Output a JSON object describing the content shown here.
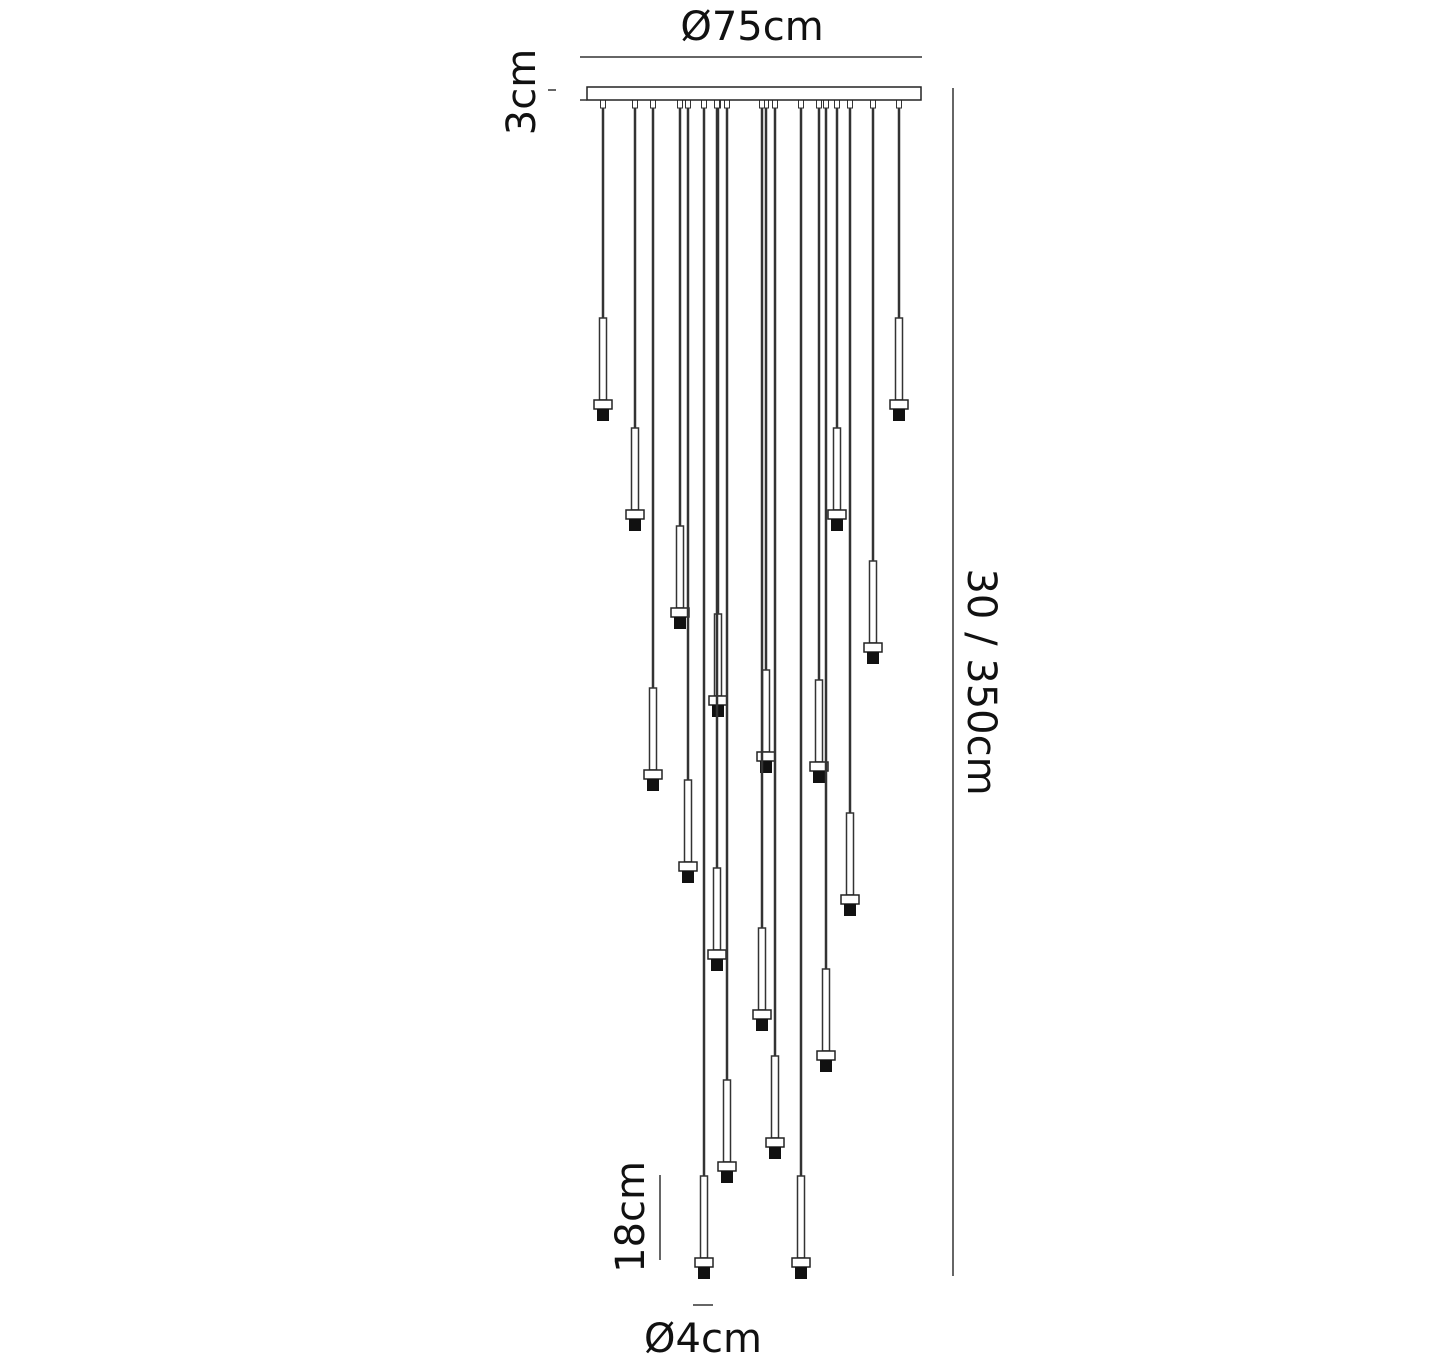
{
  "dimensions": {
    "width": "Ø75cm",
    "canopy_height": "3cm",
    "drop": "30 / 350cm",
    "shade_height": "18cm",
    "shade_width": "Ø4cm"
  }
}
